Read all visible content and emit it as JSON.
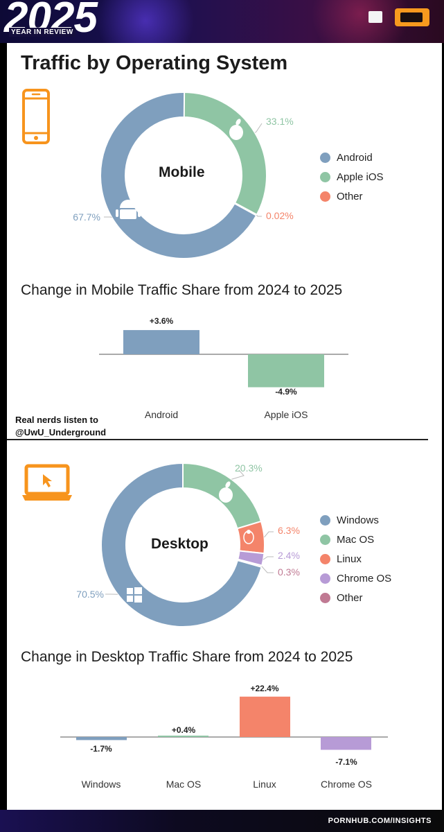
{
  "header": {
    "year": "2025",
    "subtitle": "YEAR IN REVIEW"
  },
  "page_title": "Traffic by Operating System",
  "watermark": {
    "line1": "Real nerds listen to",
    "line2": "@UwU_Underground"
  },
  "footer": {
    "text": "PORNHUB.COM/INSIGHTS"
  },
  "colors": {
    "android": "#7f9fbe",
    "apple": "#8fc5a4",
    "other_mobile": "#f4846a",
    "windows": "#7f9fbe",
    "macos": "#8fc5a4",
    "linux": "#f4846a",
    "chromeos": "#b79bd6",
    "other_desktop": "#c07a93",
    "device_icon": "#f7941d"
  },
  "chart_data": [
    {
      "type": "pie",
      "variant": "donut",
      "center_label": "Mobile",
      "icon": "phone-icon",
      "categories": [
        "Android",
        "Apple iOS",
        "Other"
      ],
      "values": [
        67.7,
        33.1,
        0.02
      ],
      "labels": [
        "67.7%",
        "33.1%",
        "0.02%"
      ],
      "legend": [
        "Android",
        "Apple iOS",
        "Other"
      ],
      "legend_position": "right"
    },
    {
      "type": "bar",
      "title": "Change in Mobile Traffic Share from 2024 to 2025",
      "categories": [
        "Android",
        "Apple iOS"
      ],
      "values": [
        3.6,
        -4.9
      ],
      "labels": [
        "+3.6%",
        "-4.9%"
      ],
      "ylim": [
        -4.9,
        3.6
      ]
    },
    {
      "type": "pie",
      "variant": "donut",
      "center_label": "Desktop",
      "icon": "laptop-icon",
      "categories": [
        "Windows",
        "Mac OS",
        "Linux",
        "Chrome OS",
        "Other"
      ],
      "values": [
        70.5,
        20.3,
        6.3,
        2.4,
        0.3
      ],
      "labels": [
        "70.5%",
        "20.3%",
        "6.3%",
        "2.4%",
        "0.3%"
      ],
      "legend": [
        "Windows",
        "Mac OS",
        "Linux",
        "Chrome OS",
        "Other"
      ],
      "legend_position": "right"
    },
    {
      "type": "bar",
      "title": "Change in Desktop Traffic Share from 2024 to 2025",
      "categories": [
        "Windows",
        "Mac OS",
        "Linux",
        "Chrome OS"
      ],
      "values": [
        -1.7,
        0.4,
        22.4,
        -7.1
      ],
      "labels": [
        "-1.7%",
        "+0.4%",
        "+22.4%",
        "-7.1%"
      ],
      "ylim": [
        -7.1,
        22.4
      ]
    }
  ]
}
